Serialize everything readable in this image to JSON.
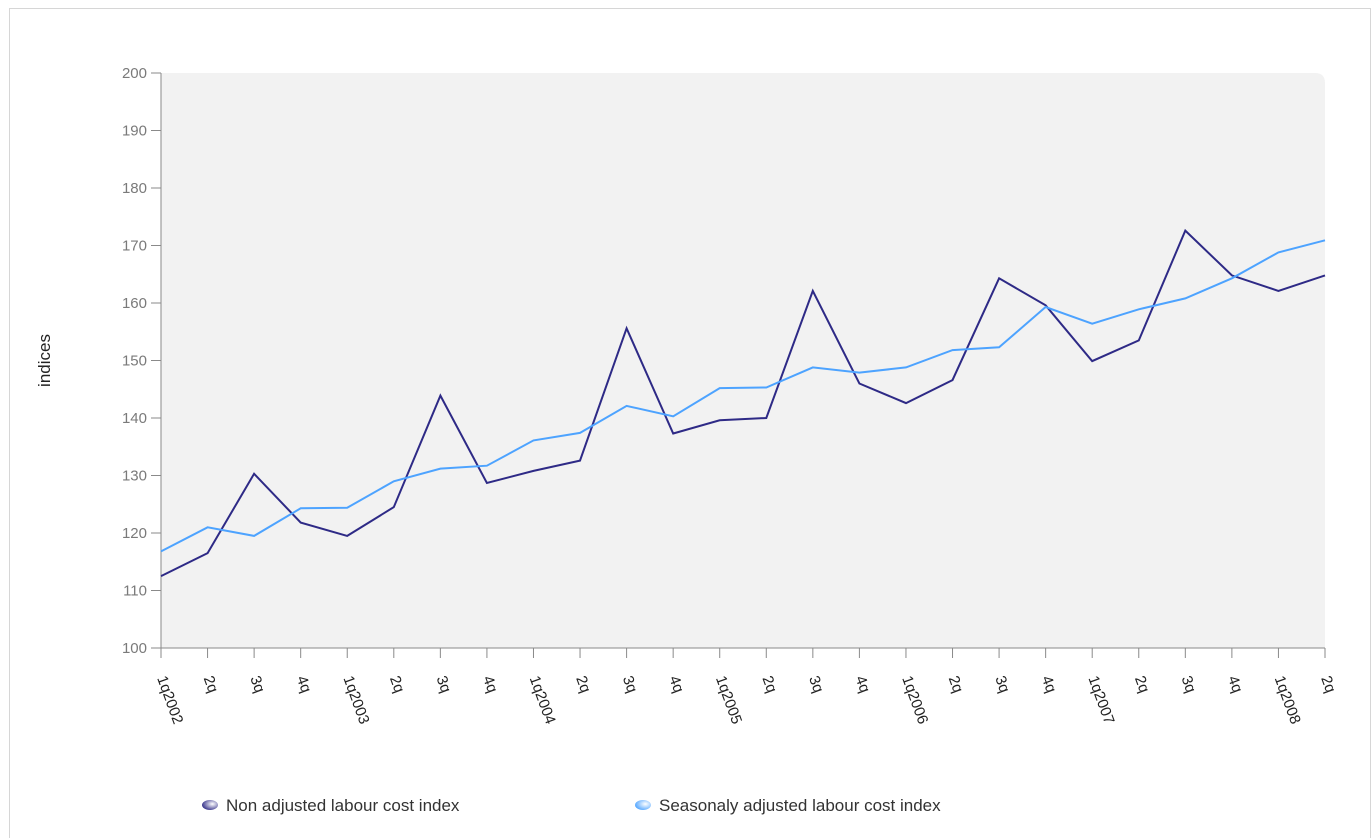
{
  "chart_data": {
    "type": "line",
    "title": "",
    "xlabel": "",
    "ylabel": "indices",
    "ylim": [
      100,
      200
    ],
    "yticks": [
      100,
      110,
      120,
      130,
      140,
      150,
      160,
      170,
      180,
      190,
      200
    ],
    "grid": false,
    "legend_position": "bottom",
    "categories": [
      "1q2002",
      "2q",
      "3q",
      "4q",
      "1q2003",
      "2q",
      "3q",
      "4q",
      "1q2004",
      "2q",
      "3q",
      "4q",
      "1q2005",
      "2q",
      "3q",
      "4q",
      "1q2006",
      "2q",
      "3q",
      "4q",
      "1q2007",
      "2q",
      "3q",
      "4q",
      "1q2008",
      "2q"
    ],
    "series": [
      {
        "name": "Non adjusted labour cost index",
        "color": "#2e2a86",
        "values": [
          112.5,
          116.5,
          130.3,
          121.8,
          119.5,
          124.5,
          143.9,
          128.7,
          130.8,
          132.6,
          155.6,
          137.3,
          139.6,
          140.0,
          162.1,
          146.0,
          142.6,
          146.6,
          164.3,
          159.6,
          149.9,
          153.5,
          172.6,
          164.8,
          162.1,
          164.8
        ]
      },
      {
        "name": "Seasonaly adjusted labour cost index",
        "color": "#4da3ff",
        "values": [
          116.8,
          121.0,
          119.5,
          124.3,
          124.4,
          129.0,
          131.2,
          131.7,
          136.1,
          137.4,
          142.1,
          140.3,
          145.2,
          145.3,
          148.8,
          147.9,
          148.8,
          151.8,
          152.3,
          159.3,
          156.4,
          158.9,
          160.8,
          164.3,
          168.8,
          170.9
        ]
      }
    ]
  }
}
